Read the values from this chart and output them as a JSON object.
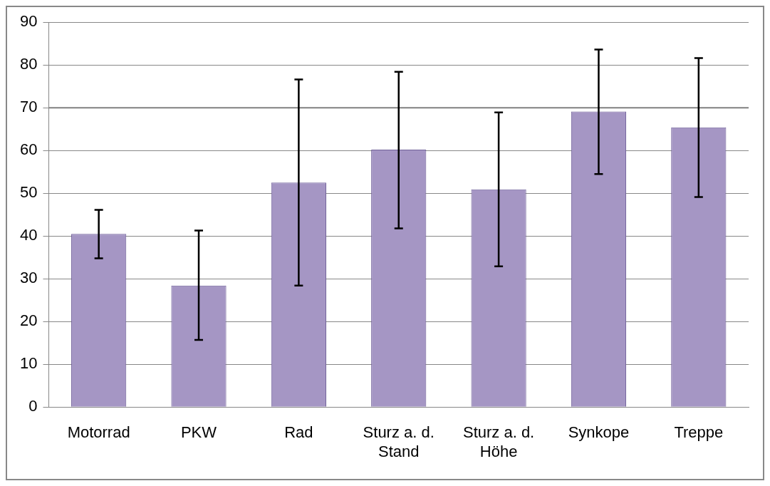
{
  "chart_data": {
    "type": "bar",
    "categories": [
      "Motorrad",
      "PKW",
      "Rad",
      "Sturz a. d. Stand",
      "Sturz a. d. Höhe",
      "Synkope",
      "Treppe"
    ],
    "values": [
      40.5,
      28.4,
      52.5,
      60.2,
      50.9,
      69.1,
      65.4
    ],
    "errors": [
      [
        34.8,
        46.1
      ],
      [
        15.7,
        41.3
      ],
      [
        28.4,
        76.6
      ],
      [
        41.8,
        78.4
      ],
      [
        32.9,
        68.9
      ],
      [
        54.5,
        83.6
      ],
      [
        49.1,
        81.6
      ]
    ],
    "color": "#a596c4",
    "ylim": [
      0,
      90
    ],
    "yticks": [
      0,
      10,
      20,
      30,
      40,
      50,
      60,
      70,
      80,
      90
    ],
    "grid": "y",
    "ref_lines": [
      {
        "axis": "y",
        "value": 70,
        "color": "#808080"
      }
    ],
    "legend": false
  }
}
